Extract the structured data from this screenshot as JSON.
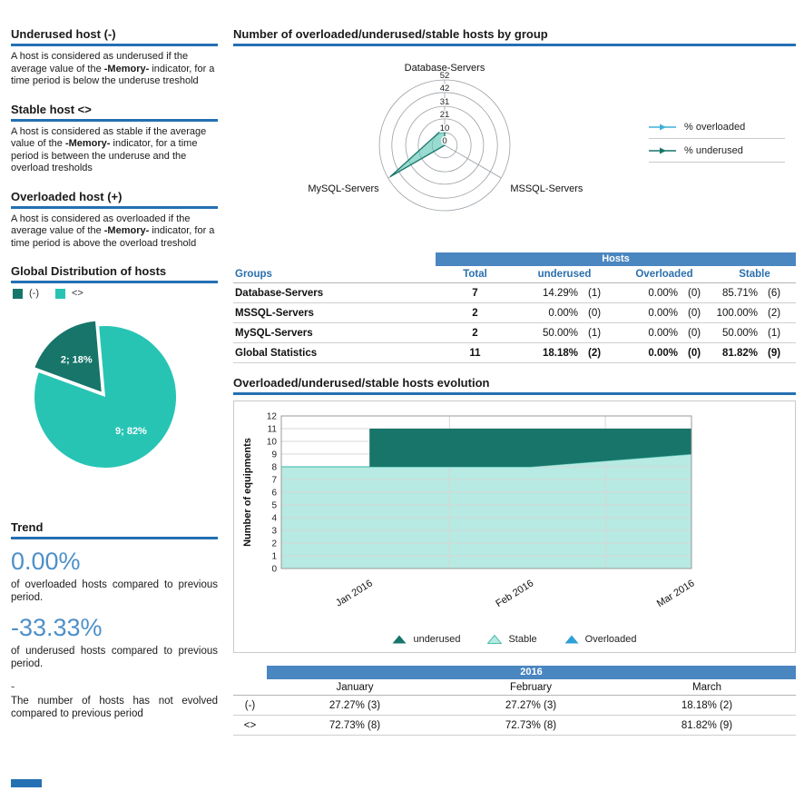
{
  "colors": {
    "accent_blue": "#2470b3",
    "band_blue": "#4a86c0",
    "header_text_blue": "#2a6fad",
    "trend_blue": "#4e90c8",
    "dark_teal": "#17756a",
    "light_teal": "#27c4b4",
    "pale_teal": "#b6eae2",
    "overloaded_blue": "#3fafd8"
  },
  "sidebar": {
    "sections": [
      {
        "title": "Underused host (-)",
        "body_pre": "A host is considered as underused if the average value of the ",
        "body_bold": "-Memory-",
        "body_post": " indicator, for a time period is below the underuse treshold"
      },
      {
        "title": "Stable host <>",
        "body_pre": "A host is considered as stable if the average value of the ",
        "body_bold": "-Memory-",
        "body_post": " indicator, for a time period is between the underuse and the overload tresholds"
      },
      {
        "title": "Overloaded host (+)",
        "body_pre": "A host is considered as overloaded if the average value of the ",
        "body_bold": "-Memory-",
        "body_post": " indicator, for a time period is above the overload treshold"
      }
    ],
    "distribution": {
      "title": "Global Distribution of hosts",
      "legend": [
        {
          "label": "(-)",
          "color": "#17756a"
        },
        {
          "label": "<>",
          "color": "#27c4b4"
        }
      ]
    },
    "trend": {
      "title": "Trend",
      "items": [
        {
          "value": "0.00%",
          "caption": "of overloaded hosts compared to previous period."
        },
        {
          "value": "-33.33%",
          "caption": "of underused hosts compared to previous period."
        },
        {
          "value": "-",
          "caption": "The number of hosts has not evolved compared to previous period"
        }
      ]
    }
  },
  "main": {
    "radar_title": "Number of overloaded/underused/stable hosts by group",
    "evolution_title": "Overloaded/underused/stable hosts evolution",
    "hosts_table": {
      "band": "Hosts",
      "col_group": "Groups",
      "col_total": "Total",
      "col_underused": "underused",
      "col_overloaded": "Overloaded",
      "col_stable": "Stable",
      "rows": [
        {
          "group": "Database-Servers",
          "total": "7",
          "u_pct": "14.29%",
          "u_n": "(1)",
          "o_pct": "0.00%",
          "o_n": "(0)",
          "s_pct": "85.71%",
          "s_n": "(6)"
        },
        {
          "group": "MSSQL-Servers",
          "total": "2",
          "u_pct": "0.00%",
          "u_n": "(0)",
          "o_pct": "0.00%",
          "o_n": "(0)",
          "s_pct": "100.00%",
          "s_n": "(2)"
        },
        {
          "group": "MySQL-Servers",
          "total": "2",
          "u_pct": "50.00%",
          "u_n": "(1)",
          "o_pct": "0.00%",
          "o_n": "(0)",
          "s_pct": "50.00%",
          "s_n": "(1)"
        },
        {
          "group": "Global Statistics",
          "total": "11",
          "u_pct": "18.18%",
          "u_n": "(2)",
          "o_pct": "0.00%",
          "o_n": "(0)",
          "s_pct": "81.82%",
          "s_n": "(9)"
        }
      ]
    },
    "year_table": {
      "band": "2016",
      "columns": [
        "January",
        "February",
        "March"
      ],
      "rows": [
        {
          "label": "(-)",
          "values": [
            "27.27% (3)",
            "27.27% (3)",
            "18.18% (2)"
          ]
        },
        {
          "label": "<>",
          "values": [
            "72.73% (8)",
            "72.73% (8)",
            "81.82% (9)"
          ]
        }
      ]
    }
  },
  "chart_data": [
    {
      "type": "pie",
      "title": "Global Distribution of hosts",
      "slices": [
        {
          "label": "2; 18%",
          "value": 2,
          "pct": 18,
          "color": "#17756a",
          "explode": 7
        },
        {
          "label": "9; 82%",
          "value": 9,
          "pct": 82,
          "color": "#27c4b4",
          "explode": 0
        }
      ],
      "start_angle_deg": 95
    },
    {
      "type": "radar",
      "title": "Number of overloaded/underused/stable hosts by group",
      "axes": [
        "Database-Servers",
        "MSSQL-Servers",
        "MySQL-Servers"
      ],
      "axis_angles_deg": [
        90,
        330,
        210
      ],
      "ticks": [
        0,
        10,
        21,
        31,
        42,
        52
      ],
      "rmax": 52,
      "series": [
        {
          "name": "% overloaded",
          "color": "#3fafd8",
          "values": [
            0,
            0,
            0
          ]
        },
        {
          "name": "% underused",
          "color": "#17756a",
          "fill": "#57c3b3",
          "values": [
            14.29,
            0,
            50
          ]
        }
      ]
    },
    {
      "type": "area",
      "title": "Overloaded/underused/stable hosts evolution",
      "ylabel": "Number of equipments",
      "ylim": [
        0,
        12
      ],
      "x": [
        "Jan 2016",
        "Feb 2016",
        "Mar 2016"
      ],
      "x_pos": [
        0.215,
        0.6075,
        1.0
      ],
      "series": [
        {
          "name": "Stable",
          "color": "#b6eae2",
          "edge": "#56c4b4",
          "values": [
            8,
            8,
            9
          ]
        },
        {
          "name": "underused",
          "color": "#17756a",
          "values": [
            3,
            3,
            2
          ]
        },
        {
          "name": "Overloaded",
          "color": "#2f9fd4",
          "values": [
            0,
            0,
            0
          ]
        }
      ],
      "legend": [
        {
          "label": "underused",
          "color": "#17756a"
        },
        {
          "label": "Stable",
          "color": "#b6eae2",
          "edge": "#4fbcac"
        },
        {
          "label": "Overloaded",
          "color": "#2f9fd4"
        }
      ]
    }
  ]
}
